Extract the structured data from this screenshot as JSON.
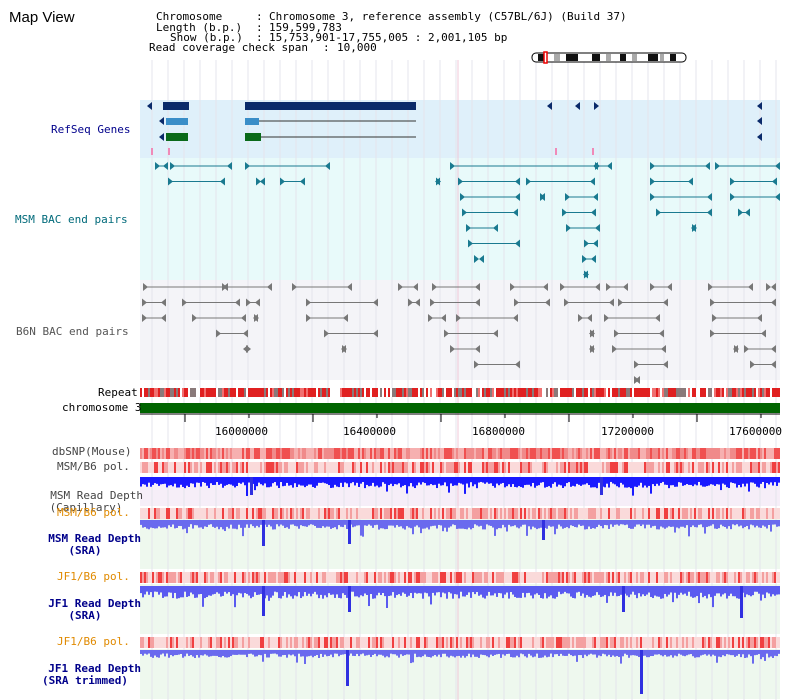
{
  "page": {
    "title": "Map View"
  },
  "info": {
    "chromosome_label": "Chromosome",
    "chromosome_value": "Chromosome 3, reference assembly (C57BL/6J) (Build 37)",
    "length_label": "Length (b.p.)",
    "length_value": "159,599,783",
    "show_label": "Show (b.p.)",
    "show_value": "15,753,901-17,755,005 : 2,001,105 bp",
    "coverage_label": "Read coverage check span",
    "coverage_value": "10,000"
  },
  "tracks": {
    "refseq": "RefSeq Genes",
    "msm_bac": "MSM BAC end pairs",
    "b6n_bac": "B6N BAC end pairs",
    "repeat": "Repeat",
    "chromosome": "chromosome 3",
    "dbsnp": "dbSNP(Mouse)",
    "msm_b6_pol": "MSM/B6 pol.",
    "msm_read_depth_cap_1": "MSM Read Depth",
    "msm_read_depth_cap_2": "(Capillary)",
    "msm_b6_pol_2": "MSM/B6 pol.",
    "msm_read_depth_sra_1": "MSM Read Depth",
    "msm_read_depth_sra_2": "(SRA)",
    "jf1_b6_pol": "JF1/B6 pol.",
    "jf1_read_depth_sra_1": "JF1 Read Depth",
    "jf1_read_depth_sra_2": "(SRA)",
    "jf1_b6_pol_2": "JF1/B6 pol.",
    "jf1_read_depth_trim_1": "JF1 Read Depth",
    "jf1_read_depth_trim_2": "(SRA trimmed)"
  },
  "axis": {
    "ticks": [
      "16000000",
      "16400000",
      "16800000",
      "17200000",
      "17600000"
    ]
  },
  "colors": {
    "refseq_bg": "#dff0fa",
    "msm_bac_bg": "#e8fafa",
    "b6n_bac_bg": "#f4f4f8",
    "gene_dark": "#0a2a6a",
    "gene_mid": "#3a8ec8",
    "gene_green": "#0a6a1a",
    "bac_msm": "#1a7a90",
    "bac_b6n": "#777777",
    "chromosome": "#006400",
    "depth_blue": "#1a1aff",
    "depth_mid": "#6a6aee",
    "depth_jf1": "#5a5af0",
    "label_navy": "#00008b",
    "label_teal": "#006a7a",
    "label_orange": "#e08a00"
  }
}
